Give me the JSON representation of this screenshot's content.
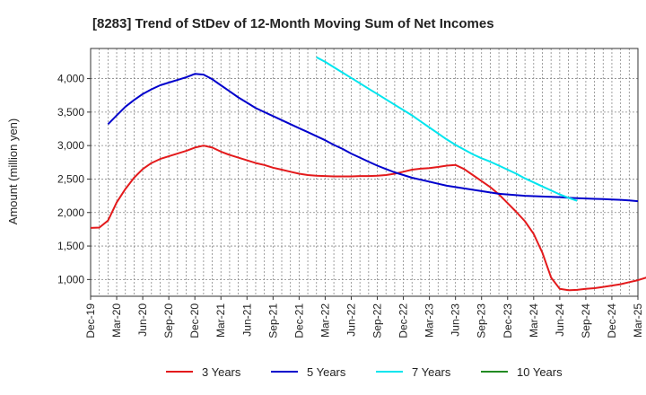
{
  "chart_data": {
    "type": "line",
    "title": "[8283]  Trend of StDev of 12-Month Moving Sum of Net Incomes",
    "ylabel": "Amount (million yen)",
    "xlabel": "",
    "ylim": [
      750,
      4450
    ],
    "yticks": [
      1000,
      1500,
      2000,
      2500,
      3000,
      3500,
      4000
    ],
    "ytick_labels": [
      "1,000",
      "1,500",
      "2,000",
      "2,500",
      "3,000",
      "3,500",
      "4,000"
    ],
    "x_start": "2019-12",
    "x_end": "2025-03",
    "xtick_labels": [
      "Dec-19",
      "Mar-20",
      "Jun-20",
      "Sep-20",
      "Dec-20",
      "Mar-21",
      "Jun-21",
      "Sep-21",
      "Dec-21",
      "Mar-22",
      "Jun-22",
      "Sep-22",
      "Dec-22",
      "Mar-23",
      "Jun-23",
      "Sep-23",
      "Dec-23",
      "Mar-24",
      "Jun-24",
      "Sep-24",
      "Dec-24",
      "Mar-25"
    ],
    "grid": true,
    "legend_position": "bottom",
    "series": [
      {
        "name": "3 Years",
        "color": "#e31a1c",
        "start": "2019-12",
        "values": [
          1770,
          1775,
          1880,
          2150,
          2350,
          2520,
          2650,
          2740,
          2800,
          2840,
          2880,
          2920,
          2970,
          3000,
          2970,
          2910,
          2860,
          2820,
          2780,
          2740,
          2710,
          2670,
          2640,
          2610,
          2580,
          2560,
          2550,
          2545,
          2540,
          2540,
          2540,
          2545,
          2545,
          2550,
          2560,
          2580,
          2610,
          2640,
          2655,
          2665,
          2680,
          2700,
          2710,
          2650,
          2560,
          2470,
          2380,
          2270,
          2140,
          2010,
          1870,
          1680,
          1400,
          1030,
          860,
          840,
          845,
          860,
          870,
          890,
          910,
          930,
          960,
          990,
          1030,
          1060,
          1090,
          1110
        ]
      },
      {
        "name": "5 Years",
        "color": "#0000cc",
        "start": "2020-02",
        "values": [
          3320,
          3450,
          3580,
          3680,
          3770,
          3840,
          3900,
          3940,
          3980,
          4020,
          4070,
          4060,
          3990,
          3900,
          3810,
          3720,
          3640,
          3560,
          3500,
          3440,
          3380,
          3320,
          3260,
          3200,
          3140,
          3080,
          3010,
          2950,
          2880,
          2820,
          2760,
          2700,
          2650,
          2600,
          2560,
          2520,
          2490,
          2460,
          2430,
          2400,
          2380,
          2360,
          2340,
          2320,
          2300,
          2280,
          2270,
          2260,
          2250,
          2245,
          2240,
          2235,
          2230,
          2220,
          2215,
          2210,
          2205,
          2200,
          2195,
          2190,
          2180,
          2170
        ]
      },
      {
        "name": "7 Years",
        "color": "#00e5ee",
        "start": "2022-02",
        "values": [
          4320,
          4250,
          4170,
          4090,
          4010,
          3930,
          3850,
          3770,
          3690,
          3610,
          3530,
          3450,
          3360,
          3270,
          3180,
          3090,
          3010,
          2940,
          2870,
          2810,
          2760,
          2700,
          2640,
          2580,
          2510,
          2450,
          2390,
          2330,
          2270,
          2220,
          2175
        ]
      },
      {
        "name": "10 Years",
        "color": "#228b22",
        "start": "2024-12",
        "values": []
      }
    ]
  }
}
